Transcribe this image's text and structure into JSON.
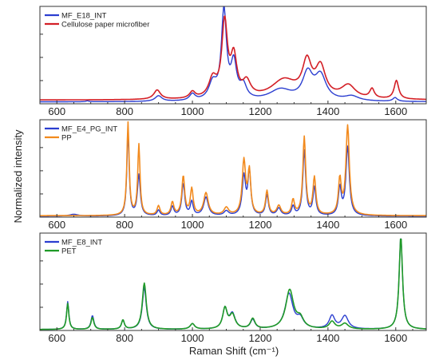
{
  "figure": {
    "ylabel": "Normalized intensity",
    "xlabel": "Raman Shift (cm⁻¹)"
  },
  "chart_data": [
    {
      "type": "line",
      "xlim": [
        550,
        1690
      ],
      "ylim": [
        0,
        1.05
      ],
      "xticks": [
        600,
        800,
        1000,
        1200,
        1400,
        1600
      ],
      "tick_labels": [
        "600",
        "800",
        "1000",
        "1200",
        "1400",
        "1600"
      ],
      "legend_position": "top-left",
      "series": [
        {
          "name": "MF_E18_INT",
          "color": "#2b3ed0",
          "baseline": 0.02,
          "peaks": [
            [
              690,
              0.01,
              5
            ],
            [
              900,
              0.06,
              12
            ],
            [
              1000,
              0.07,
              10
            ],
            [
              1060,
              0.18,
              14
            ],
            [
              1093,
              0.95,
              9
            ],
            [
              1122,
              0.38,
              10
            ],
            [
              1150,
              0.15,
              12
            ],
            [
              1260,
              0.12,
              40
            ],
            [
              1340,
              0.28,
              18
            ],
            [
              1378,
              0.26,
              20
            ],
            [
              1470,
              0.05,
              25
            ],
            [
              1598,
              0.04,
              8
            ]
          ]
        },
        {
          "name": "Cellulose paper microfiber",
          "color": "#d31f26",
          "baseline": 0.04,
          "peaks": [
            [
              896,
              0.1,
              12
            ],
            [
              1000,
              0.07,
              10
            ],
            [
              1060,
              0.2,
              14
            ],
            [
              1095,
              0.8,
              10
            ],
            [
              1122,
              0.42,
              11
            ],
            [
              1160,
              0.16,
              14
            ],
            [
              1270,
              0.2,
              45
            ],
            [
              1338,
              0.36,
              16
            ],
            [
              1378,
              0.32,
              18
            ],
            [
              1460,
              0.14,
              25
            ],
            [
              1530,
              0.1,
              8
            ],
            [
              1602,
              0.2,
              8
            ]
          ]
        }
      ]
    },
    {
      "type": "line",
      "xlim": [
        550,
        1690
      ],
      "ylim": [
        0,
        1.05
      ],
      "xticks": [
        600,
        800,
        1000,
        1200,
        1400,
        1600
      ],
      "tick_labels": [
        "600",
        "800",
        "1000",
        "1200",
        "1400",
        "1600"
      ],
      "legend_position": "top-left",
      "series": [
        {
          "name": "MF_E4_PG_INT",
          "color": "#2b3ed0",
          "baseline": 0.01,
          "peaks": [
            [
              650,
              0.02,
              15
            ],
            [
              810,
              0.9,
              4
            ],
            [
              842,
              0.44,
              5
            ],
            [
              900,
              0.06,
              5
            ],
            [
              941,
              0.1,
              5
            ],
            [
              973,
              0.35,
              5
            ],
            [
              998,
              0.15,
              5
            ],
            [
              1040,
              0.2,
              8
            ],
            [
              1100,
              0.05,
              8
            ],
            [
              1152,
              0.42,
              6
            ],
            [
              1168,
              0.47,
              5
            ],
            [
              1220,
              0.22,
              5
            ],
            [
              1255,
              0.08,
              7
            ],
            [
              1297,
              0.1,
              5
            ],
            [
              1330,
              0.7,
              5
            ],
            [
              1360,
              0.3,
              5
            ],
            [
              1435,
              0.3,
              5
            ],
            [
              1458,
              0.74,
              6
            ]
          ]
        },
        {
          "name": "PP",
          "color": "#f28a1d",
          "baseline": 0.015,
          "peaks": [
            [
              810,
              1.0,
              4
            ],
            [
              842,
              0.76,
              4
            ],
            [
              900,
              0.1,
              5
            ],
            [
              941,
              0.14,
              5
            ],
            [
              973,
              0.42,
              5
            ],
            [
              998,
              0.28,
              5
            ],
            [
              1040,
              0.24,
              8
            ],
            [
              1100,
              0.08,
              8
            ],
            [
              1152,
              0.58,
              6
            ],
            [
              1168,
              0.46,
              5
            ],
            [
              1220,
              0.26,
              5
            ],
            [
              1255,
              0.1,
              7
            ],
            [
              1297,
              0.16,
              5
            ],
            [
              1330,
              0.84,
              5
            ],
            [
              1360,
              0.4,
              5
            ],
            [
              1435,
              0.38,
              5
            ],
            [
              1458,
              0.96,
              6
            ]
          ]
        }
      ]
    },
    {
      "type": "line",
      "xlim": [
        550,
        1690
      ],
      "ylim": [
        0,
        1.05
      ],
      "xticks": [
        600,
        800,
        1000,
        1200,
        1400,
        1600
      ],
      "tick_labels": [
        "600",
        "800",
        "1000",
        "1200",
        "1400",
        "1600"
      ],
      "legend_position": "top-left",
      "series": [
        {
          "name": "MF_E8_INT",
          "color": "#2b3ed0",
          "baseline": 0.01,
          "peaks": [
            [
              632,
              0.3,
              4
            ],
            [
              705,
              0.15,
              5
            ],
            [
              795,
              0.1,
              5
            ],
            [
              858,
              0.45,
              7
            ],
            [
              1000,
              0.06,
              8
            ],
            [
              1096,
              0.22,
              8
            ],
            [
              1118,
              0.16,
              10
            ],
            [
              1178,
              0.1,
              8
            ],
            [
              1285,
              0.38,
              14
            ],
            [
              1318,
              0.1,
              12
            ],
            [
              1412,
              0.14,
              10
            ],
            [
              1450,
              0.14,
              12
            ],
            [
              1615,
              1.0,
              6
            ]
          ]
        },
        {
          "name": "PET",
          "color": "#1f9a27",
          "baseline": 0.01,
          "peaks": [
            [
              632,
              0.28,
              4
            ],
            [
              705,
              0.13,
              5
            ],
            [
              795,
              0.1,
              5
            ],
            [
              858,
              0.5,
              7
            ],
            [
              1000,
              0.06,
              8
            ],
            [
              1096,
              0.22,
              8
            ],
            [
              1118,
              0.15,
              10
            ],
            [
              1178,
              0.11,
              8
            ],
            [
              1287,
              0.42,
              14
            ],
            [
              1318,
              0.1,
              12
            ],
            [
              1412,
              0.08,
              10
            ],
            [
              1450,
              0.06,
              12
            ],
            [
              1615,
              1.0,
              6
            ]
          ]
        }
      ]
    }
  ]
}
